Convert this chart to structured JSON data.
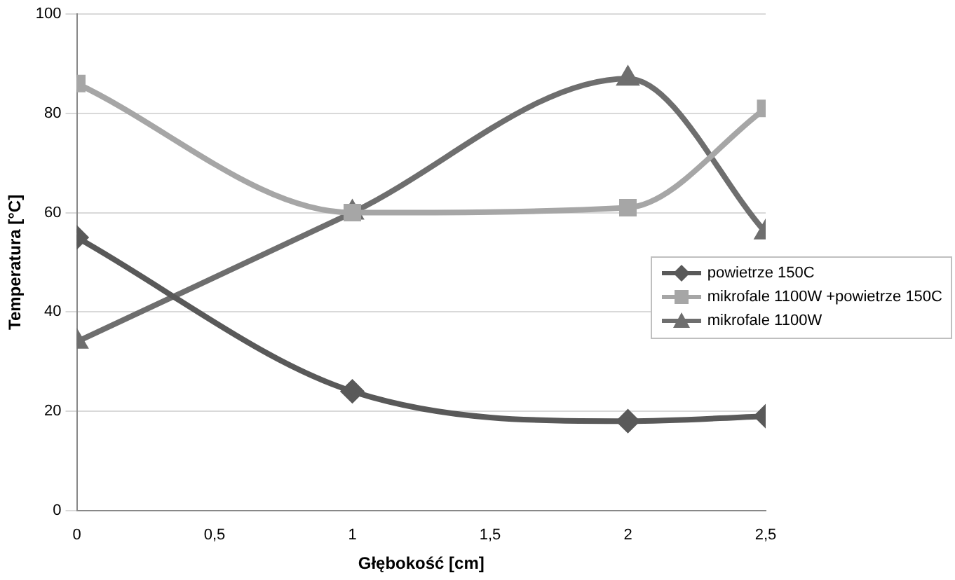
{
  "chart_data": {
    "type": "line",
    "xlabel": "Głębokość [cm]",
    "ylabel": "Temperatura [°C]",
    "x": [
      0,
      1,
      2,
      2.5
    ],
    "xlim": [
      0,
      2.5
    ],
    "xticks": [
      0,
      {
        "value": 0.5,
        "label": "0,5"
      },
      1,
      {
        "value": 1.5,
        "label": "1,5"
      },
      2,
      {
        "value": 2.5,
        "label": "2,5"
      }
    ],
    "ylim": [
      0,
      100
    ],
    "yticks": [
      0,
      20,
      40,
      60,
      80,
      100
    ],
    "grid": "y",
    "legend": "right",
    "series": [
      {
        "name": "powietrze 150C",
        "color": "#595959",
        "marker": "diamond",
        "values": [
          55,
          24,
          18,
          19
        ]
      },
      {
        "name": "mikrofale 1100W +powietrze 150C",
        "color": "#a6a6a6",
        "marker": "square",
        "values": [
          86,
          60,
          61,
          81
        ]
      },
      {
        "name": "mikrofale 1100W",
        "color": "#6e6e6e",
        "marker": "triangle",
        "values": [
          34,
          60,
          87,
          56
        ]
      }
    ]
  }
}
